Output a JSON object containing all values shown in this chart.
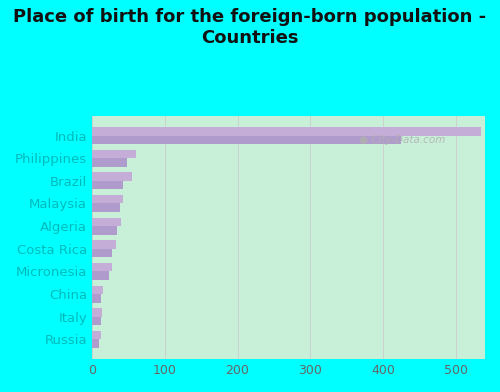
{
  "title": "Place of birth for the foreign-born population -\nCountries",
  "categories": [
    "India",
    "Philippines",
    "Brazil",
    "Malaysia",
    "Algeria",
    "Costa Rica",
    "Micronesia",
    "China",
    "Italy",
    "Russia"
  ],
  "values1": [
    535,
    60,
    55,
    42,
    40,
    33,
    28,
    15,
    14,
    12
  ],
  "values2": [
    425,
    48,
    42,
    38,
    34,
    28,
    24,
    13,
    12,
    10
  ],
  "bar_color1": "#c4aed8",
  "bar_color2": "#b09ccc",
  "bg_color": "#00ffff",
  "plot_bg_color_left": "#c8efd8",
  "plot_bg_color_right": "#f0faf0",
  "title_color": "#111111",
  "label_color": "#00bbbb",
  "tick_color": "#666666",
  "xlim": [
    0,
    540
  ],
  "xticks": [
    0,
    100,
    200,
    300,
    400,
    500
  ],
  "title_fontsize": 13,
  "label_fontsize": 9.5,
  "tick_fontsize": 9
}
